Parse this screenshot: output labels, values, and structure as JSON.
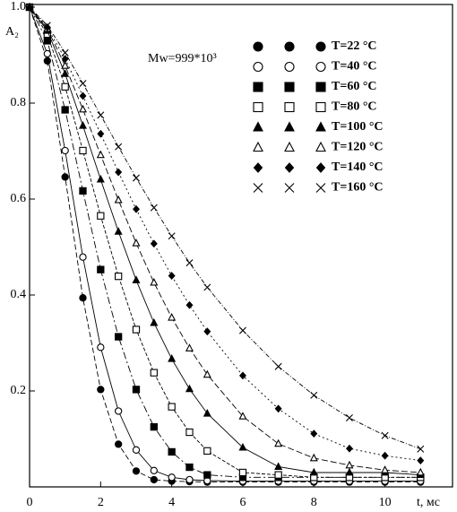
{
  "chart_data": {
    "type": "scatter",
    "x_label": "t, мс",
    "y_label": "A₂",
    "annotation": "Mw=999*10³",
    "xlim": [
      0,
      11.85
    ],
    "ylim": [
      0,
      1
    ],
    "xticks": [
      0,
      2,
      4,
      6,
      8,
      10
    ],
    "yticks": [
      {
        "value": 0.2,
        "label": "0.2"
      },
      {
        "value": 0.4,
        "label": "0.4"
      },
      {
        "value": 0.6,
        "label": "0.6"
      },
      {
        "value": 0.8,
        "label": "0.8"
      },
      {
        "value": 1,
        "label": "1.0"
      }
    ],
    "x": [
      0,
      0.5,
      1,
      1.5,
      2,
      2.5,
      3,
      3.5,
      4,
      4.5,
      5,
      6,
      7,
      8,
      9,
      10,
      11
    ],
    "series": [
      {
        "name": "T=22 °C",
        "marker": "filled-circle",
        "color": "#000000",
        "values": [
          1,
          0.888,
          0.646,
          0.394,
          0.203,
          0.089,
          0.033,
          0.015,
          0.012,
          0.011,
          0.01,
          0.01,
          0.01,
          0.01,
          0.01,
          0.01,
          0.01
        ]
      },
      {
        "name": "T=40 °C",
        "marker": "open-circle",
        "color": "#000000",
        "values": [
          1,
          0.903,
          0.701,
          0.479,
          0.291,
          0.158,
          0.077,
          0.034,
          0.02,
          0.015,
          0.013,
          0.012,
          0.012,
          0.012,
          0.012,
          0.012,
          0.012
        ]
      },
      {
        "name": "T=60 °C",
        "marker": "filled-square",
        "color": "#000000",
        "values": [
          1,
          0.93,
          0.786,
          0.617,
          0.453,
          0.313,
          0.203,
          0.125,
          0.073,
          0.041,
          0.025,
          0.02,
          0.02,
          0.02,
          0.02,
          0.02,
          0.02
        ]
      },
      {
        "name": "T=80 °C",
        "marker": "open-square",
        "color": "#000000",
        "values": [
          1,
          0.944,
          0.834,
          0.701,
          0.565,
          0.439,
          0.328,
          0.238,
          0.167,
          0.114,
          0.075,
          0.03,
          0.025,
          0.02,
          0.02,
          0.02,
          0.02
        ]
      },
      {
        "name": "T=100 °C",
        "marker": "filled-triangle",
        "color": "#000000",
        "values": [
          1,
          0.951,
          0.861,
          0.753,
          0.641,
          0.532,
          0.431,
          0.342,
          0.267,
          0.204,
          0.153,
          0.082,
          0.042,
          0.03,
          0.03,
          0.03,
          0.025
        ]
      },
      {
        "name": "T=120 °C",
        "marker": "open-triangle",
        "color": "#000000",
        "values": [
          1,
          0.955,
          0.878,
          0.787,
          0.692,
          0.598,
          0.508,
          0.426,
          0.353,
          0.289,
          0.234,
          0.147,
          0.09,
          0.06,
          0.045,
          0.035,
          0.03
        ]
      },
      {
        "name": "T=140 °C",
        "marker": "filled-diamond",
        "color": "#000000",
        "values": [
          1,
          0.958,
          0.892,
          0.815,
          0.736,
          0.656,
          0.579,
          0.507,
          0.44,
          0.379,
          0.324,
          0.232,
          0.163,
          0.111,
          0.08,
          0.065,
          0.055
        ]
      },
      {
        "name": "T=160 °C",
        "marker": "cross",
        "color": "#000000",
        "values": [
          1,
          0.962,
          0.905,
          0.841,
          0.775,
          0.709,
          0.644,
          0.582,
          0.523,
          0.467,
          0.416,
          0.326,
          0.251,
          0.191,
          0.144,
          0.107,
          0.079
        ]
      }
    ]
  }
}
